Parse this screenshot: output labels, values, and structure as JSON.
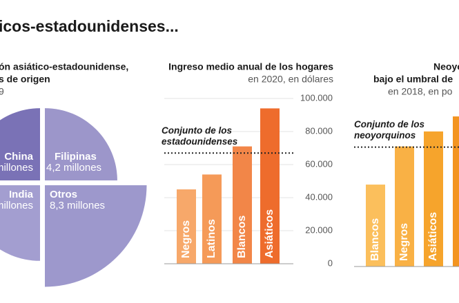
{
  "title": "icos-estadounidenses...",
  "chart_data": [
    {
      "type": "pie",
      "title": [
        "ón asiático-estadounidense,",
        "s de origen"
      ],
      "subtitle": "9",
      "categories": [
        "China",
        "Filipinas",
        "India",
        "Otros"
      ],
      "values": [
        4.2,
        4.2,
        4.6,
        8.3
      ],
      "value_labels": [
        "millones",
        "4,2 millones",
        "millones",
        "8,3 millones"
      ],
      "colors": [
        "#7a72b6",
        "#9c96ca",
        "#a39ed0",
        "#9d98cc"
      ]
    },
    {
      "type": "bar",
      "title": "Ingreso medio anual de los hogares",
      "subtitle": "en 2020, en dólares",
      "categories": [
        "Negros",
        "Latinos",
        "Blancos",
        "Asiáticos"
      ],
      "values": [
        45000,
        54000,
        71000,
        94000
      ],
      "colors": [
        "#f7a86a",
        "#f59a58",
        "#f28648",
        "#ee6c2c"
      ],
      "reference": {
        "value": 67000,
        "label": [
          "Conjunto de los",
          "estadounidenses"
        ]
      },
      "ylim": [
        0,
        100000
      ],
      "yticks": [
        0,
        {
          "value": 20000,
          "label": "20.000"
        },
        {
          "value": 40000,
          "label": "40.000"
        },
        {
          "value": 60000,
          "label": "60.000"
        },
        {
          "value": 80000,
          "label": "80.000"
        },
        {
          "value": 100000,
          "label": "100.000"
        }
      ],
      "grid": true
    },
    {
      "type": "bar",
      "title": [
        "Neoyo",
        "bajo el umbral de"
      ],
      "subtitle": "en 2018, en po",
      "categories": [
        "Blancos",
        "Negros",
        "Asiáticos",
        null
      ],
      "values": [
        13.1,
        19.2,
        21.6,
        24.0
      ],
      "colors": [
        "#fbbf5c",
        "#f9b145",
        "#f6a42c",
        "#f39420"
      ],
      "reference": {
        "value": 19.1,
        "label": [
          "Conjunto de los",
          "neoyorquinos"
        ]
      },
      "ylim": [
        0,
        25
      ]
    }
  ]
}
